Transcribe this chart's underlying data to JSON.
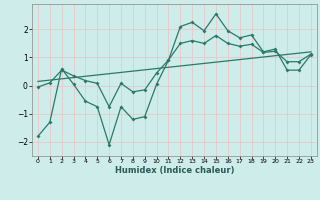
{
  "xlabel": "Humidex (Indice chaleur)",
  "background_color": "#ceecea",
  "grid_color": "#e8c8c8",
  "line_color": "#2a7a6a",
  "xlim": [
    -0.5,
    23.5
  ],
  "ylim": [
    -2.5,
    2.9
  ],
  "yticks": [
    -2,
    -1,
    0,
    1,
    2
  ],
  "xticks": [
    0,
    1,
    2,
    3,
    4,
    5,
    6,
    7,
    8,
    9,
    10,
    11,
    12,
    13,
    14,
    15,
    16,
    17,
    18,
    19,
    20,
    21,
    22,
    23
  ],
  "line1_x": [
    0,
    1,
    2,
    3,
    4,
    5,
    6,
    7,
    8,
    9,
    10,
    11,
    12,
    13,
    14,
    15,
    16,
    17,
    18,
    19,
    20,
    21,
    22,
    23
  ],
  "line1_y": [
    -1.8,
    -1.3,
    0.6,
    0.05,
    -0.55,
    -0.75,
    -2.1,
    -0.75,
    -1.2,
    -1.1,
    0.05,
    0.9,
    2.1,
    2.25,
    1.95,
    2.55,
    1.95,
    1.7,
    1.8,
    1.2,
    1.3,
    0.55,
    0.55,
    1.1
  ],
  "line2_x": [
    0,
    23
  ],
  "line2_y": [
    0.15,
    1.2
  ],
  "line3_x": [
    0,
    1,
    2,
    3,
    4,
    5,
    6,
    7,
    8,
    9,
    10,
    11,
    12,
    13,
    14,
    15,
    16,
    17,
    18,
    19,
    20,
    21,
    22,
    23
  ],
  "line3_y": [
    -0.05,
    0.1,
    0.55,
    0.35,
    0.18,
    0.08,
    -0.75,
    0.08,
    -0.22,
    -0.15,
    0.45,
    0.91,
    1.5,
    1.6,
    1.5,
    1.78,
    1.5,
    1.4,
    1.47,
    1.18,
    1.22,
    0.85,
    0.85,
    1.12
  ]
}
